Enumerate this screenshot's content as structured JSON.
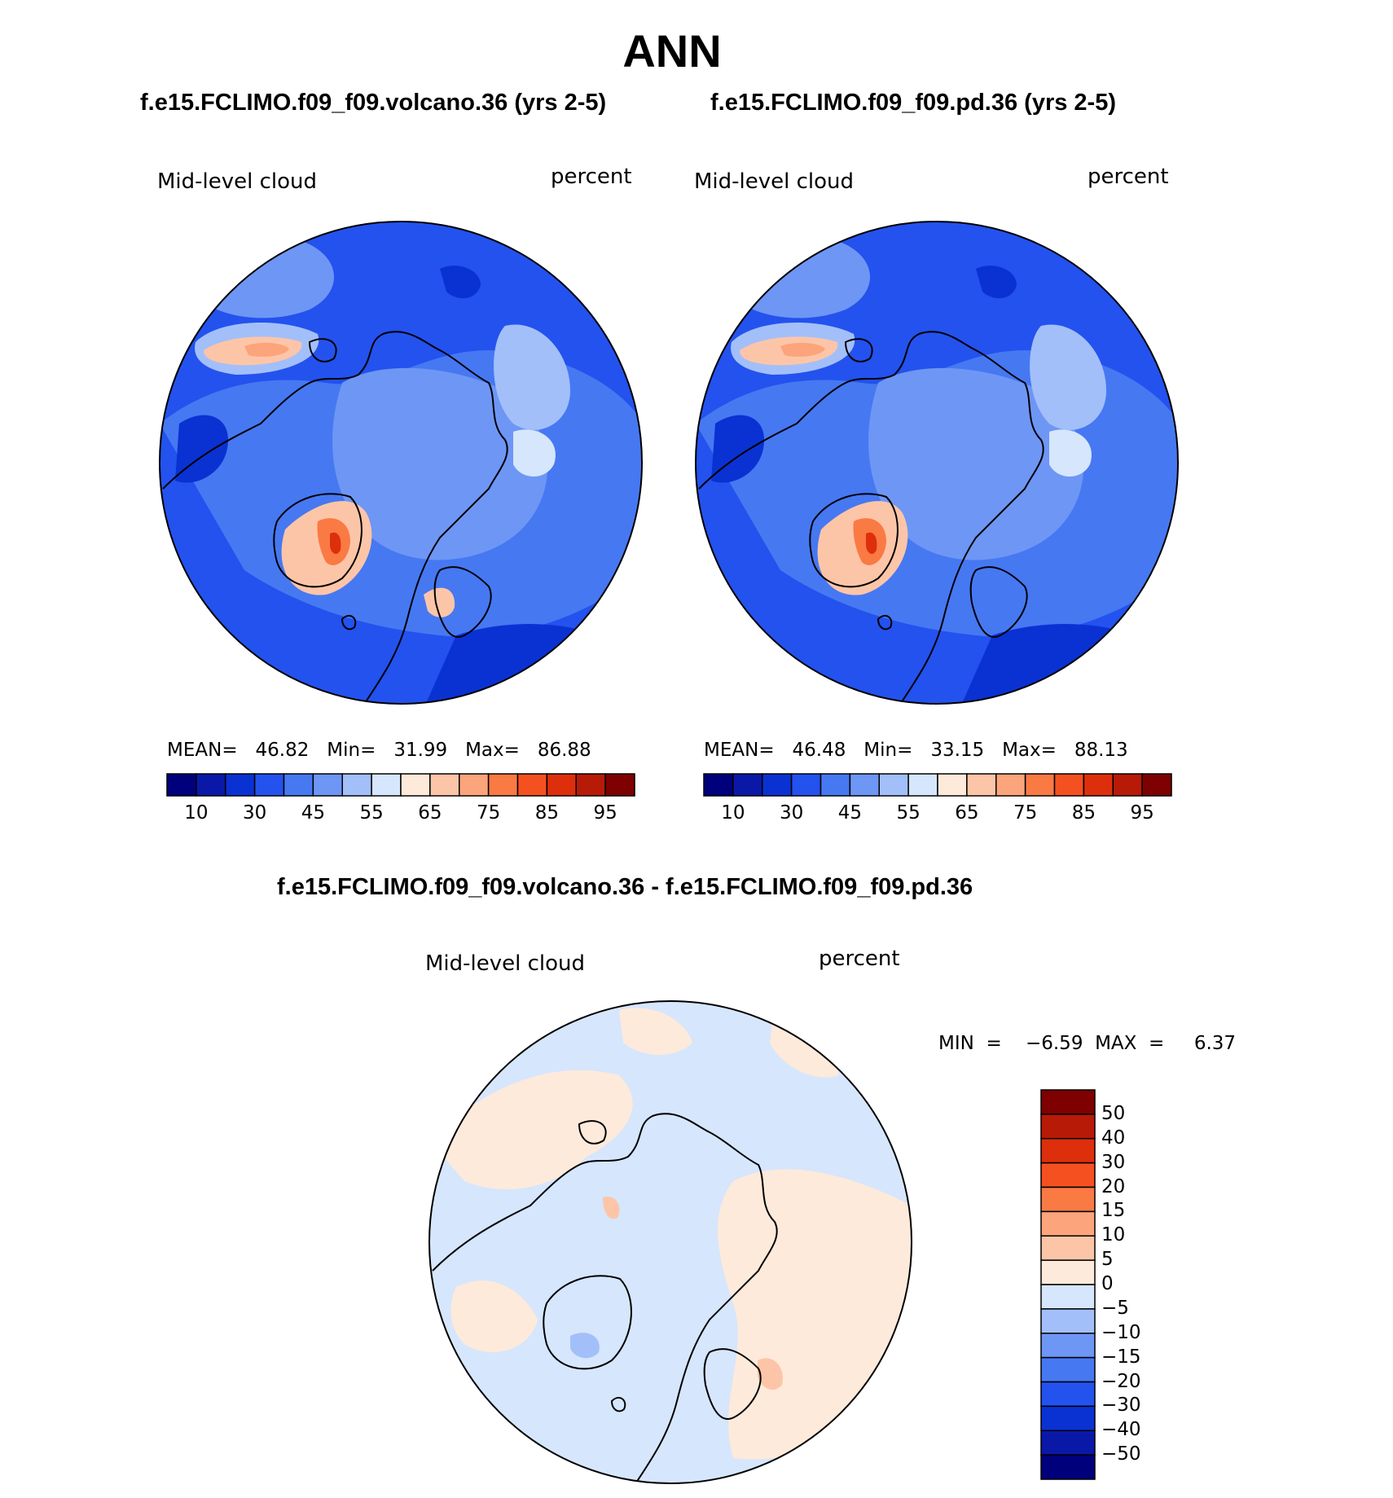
{
  "title": "ANN",
  "colors": {
    "abs_scale": [
      "#00007d",
      "#0a18a8",
      "#0a32d2",
      "#2352ee",
      "#4678f2",
      "#6e96f5",
      "#a3bff9",
      "#d6e6fc",
      "#feeadb",
      "#fdc5a8",
      "#fca47c",
      "#fa7a44",
      "#f55020",
      "#de2f0c",
      "#b81a08",
      "#7f0000"
    ],
    "diff_scale": [
      "#00007d",
      "#0a18a8",
      "#0a32d2",
      "#2352ee",
      "#4678f2",
      "#6e96f5",
      "#a3bff9",
      "#d6e6fc",
      "#feeadb",
      "#fdc5a8",
      "#fca47c",
      "#fa7a44",
      "#f55020",
      "#de2f0c",
      "#b81a08",
      "#7f0000"
    ]
  },
  "panels": [
    {
      "title": "f.e15.FCLIMO.f09_f09.volcano.36 (yrs 2-5)",
      "variable": "Mid-level cloud",
      "units": "percent",
      "stats": "MEAN=   46.82   Min=   31.99   Max=   86.88",
      "colorbar_ticks": [
        "10",
        "30",
        "45",
        "55",
        "65",
        "75",
        "85",
        "95"
      ]
    },
    {
      "title": "f.e15.FCLIMO.f09_f09.pd.36 (yrs 2-5)",
      "variable": "Mid-level cloud",
      "units": "percent",
      "stats": "MEAN=   46.48   Min=   33.15   Max=   88.13",
      "colorbar_ticks": [
        "10",
        "30",
        "45",
        "55",
        "65",
        "75",
        "85",
        "95"
      ]
    }
  ],
  "difference": {
    "title": "f.e15.FCLIMO.f09_f09.volcano.36 - f.e15.FCLIMO.f09_f09.pd.36",
    "variable": "Mid-level cloud",
    "units": "percent",
    "stats": "MIN  =    −6.59  MAX  =     6.37",
    "colorbar_ticks": [
      "50",
      "40",
      "30",
      "20",
      "15",
      "10",
      "5",
      "0",
      "−5",
      "−10",
      "−15",
      "−20",
      "−30",
      "−40",
      "−50"
    ]
  }
}
